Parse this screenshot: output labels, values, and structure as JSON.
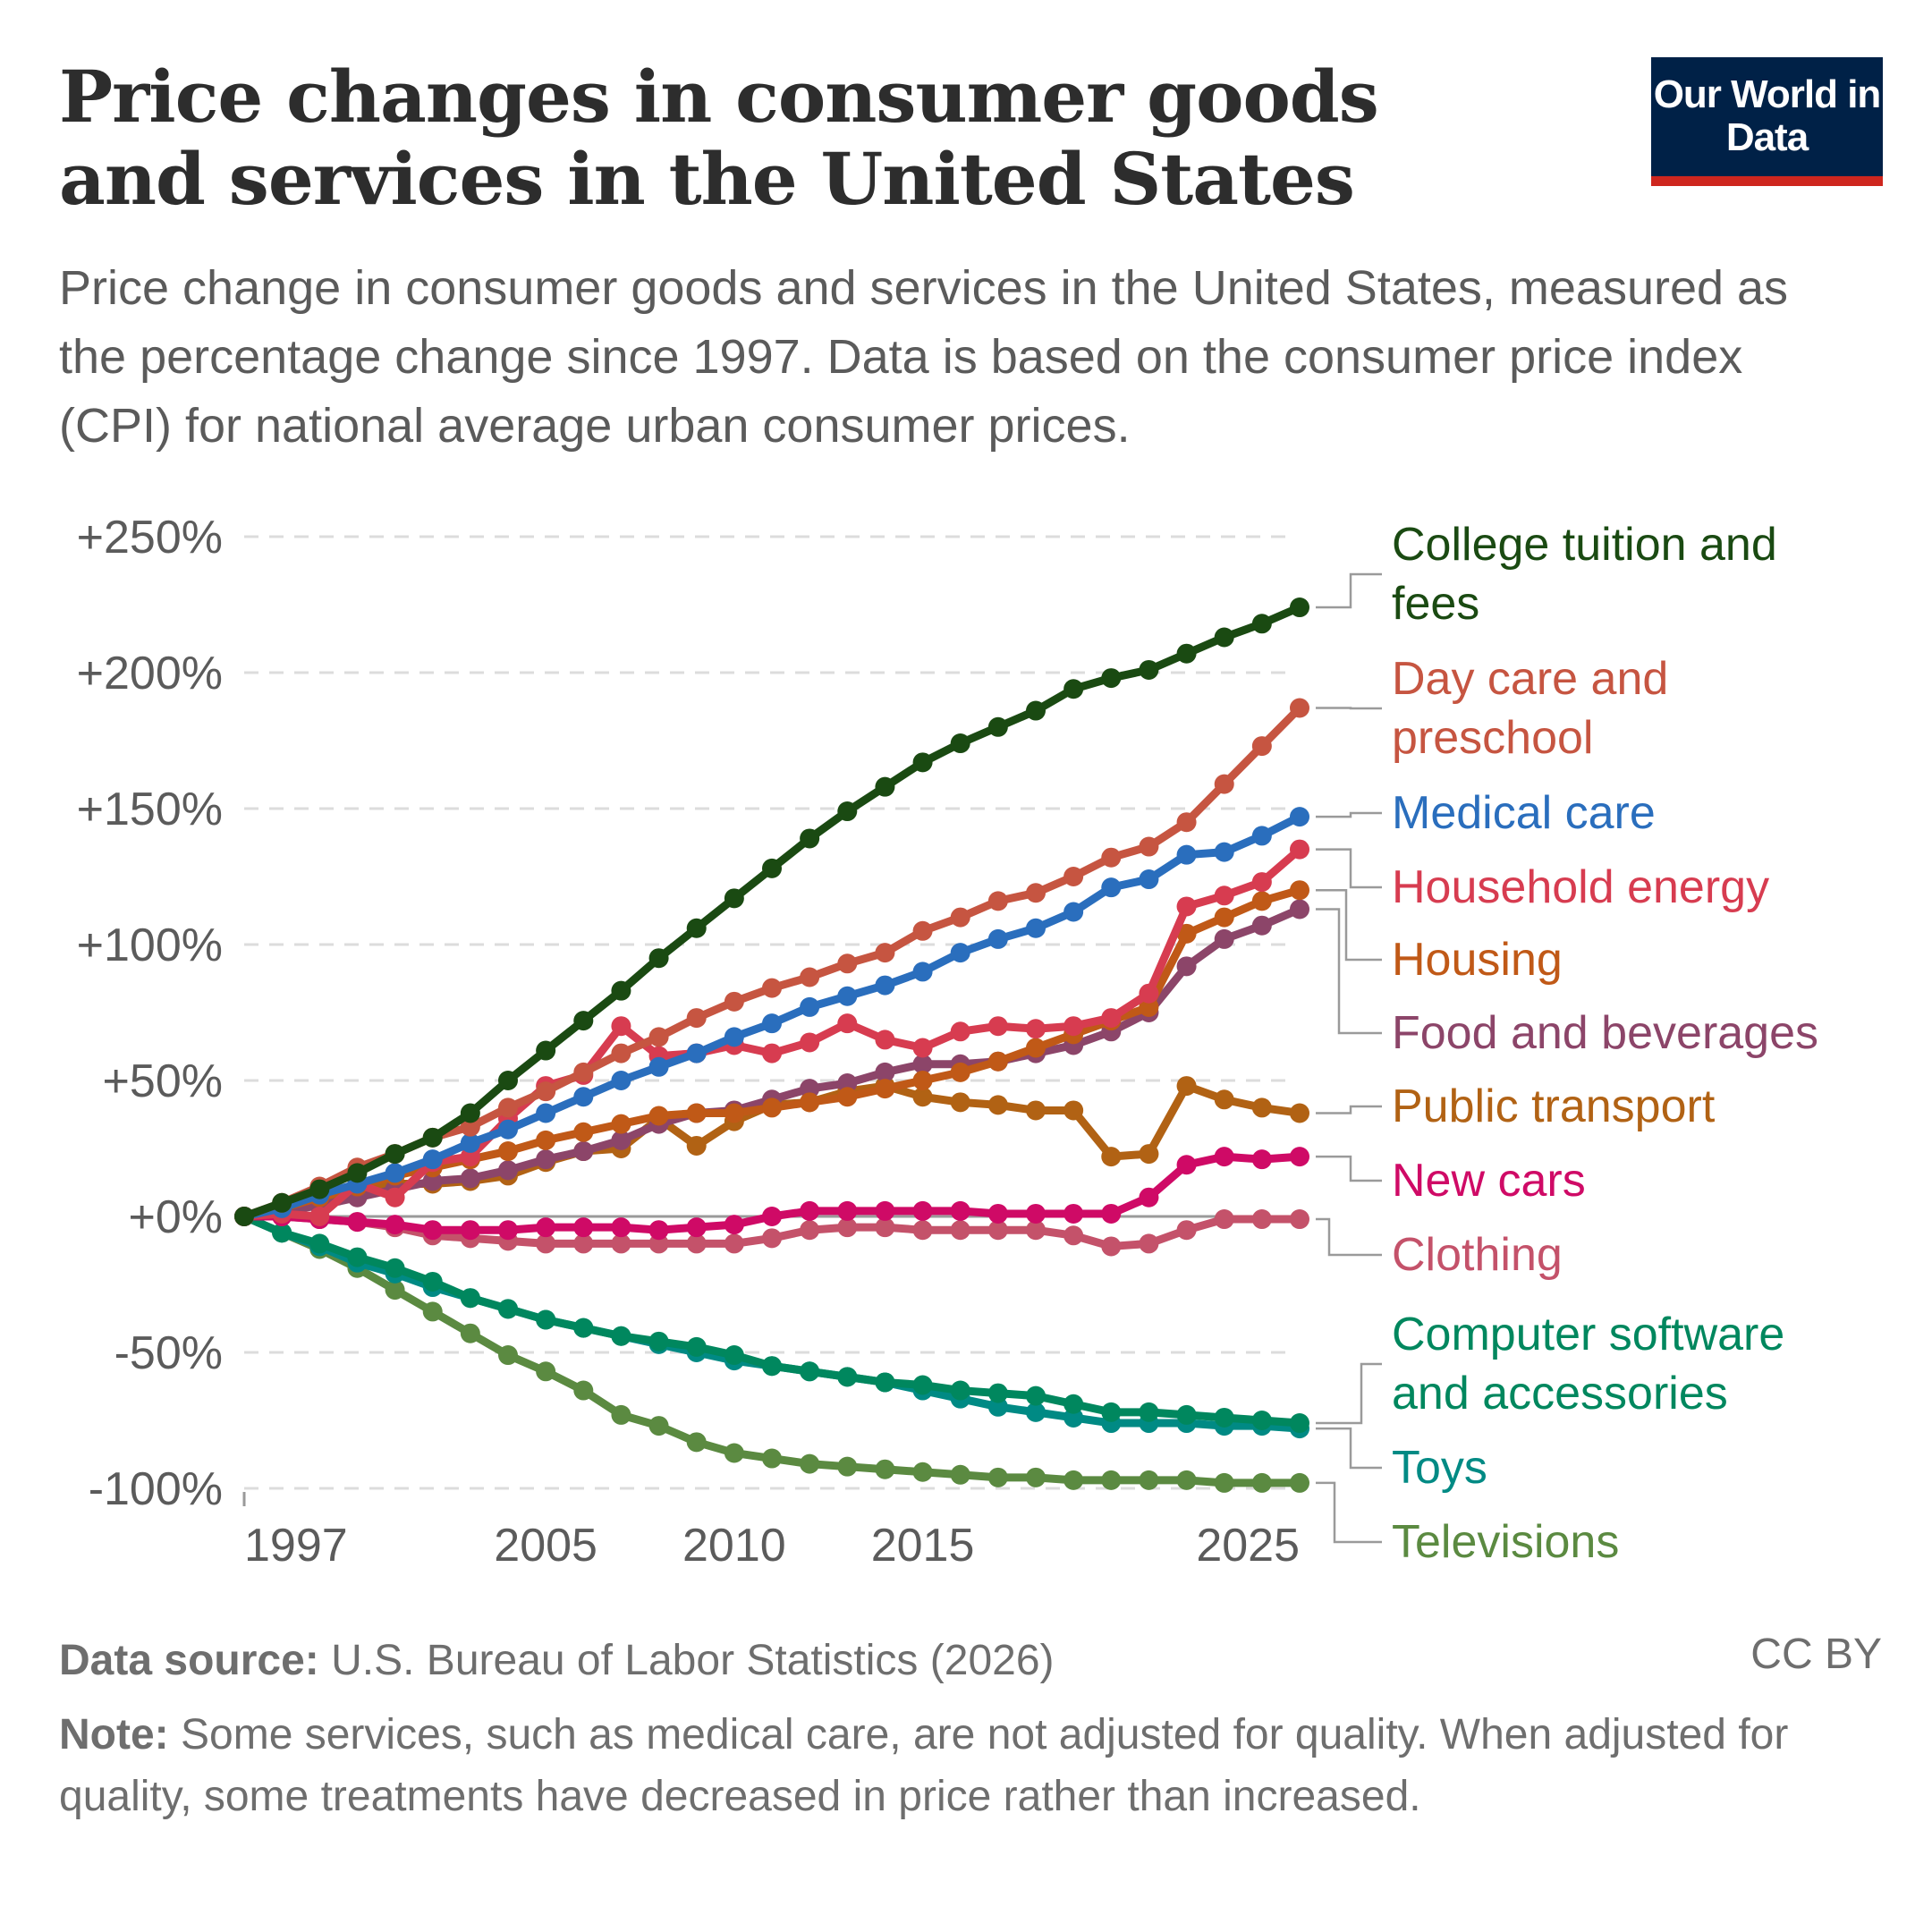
{
  "header": {
    "title": "Price changes in consumer goods and services in the United States",
    "subtitle": "Price change in consumer goods and services in the United States, measured as the percentage change since 1997. Data is based on the consumer price index (CPI) for national average urban consumer prices.",
    "logo_text": "Our World in Data"
  },
  "footer": {
    "source_label": "Data source:",
    "source_text": "U.S. Bureau of Labor Statistics (2026)",
    "license": "CC BY",
    "note_label": "Note:",
    "note_text": "Some services, such as medical care, are not adjusted for quality. When adjusted for quality, some treatments have decreased in price rather than increased."
  },
  "chart_data": {
    "type": "line",
    "title": "Price changes in consumer goods and services in the United States",
    "xlabel": "",
    "ylabel": "",
    "ylim": [
      -100,
      250
    ],
    "y_ticks": [
      "+250%",
      "+200%",
      "+150%",
      "+100%",
      "+50%",
      "+0%",
      "-50%",
      "-100%"
    ],
    "y_tick_values": [
      250,
      200,
      150,
      100,
      50,
      0,
      -50,
      -100
    ],
    "x_ticks": [
      1997,
      2005,
      2010,
      2015,
      2025
    ],
    "grid": true,
    "legend": "right (line-end labels)",
    "x": [
      1997,
      1998,
      1999,
      2000,
      2001,
      2002,
      2003,
      2004,
      2005,
      2006,
      2007,
      2008,
      2009,
      2010,
      2011,
      2012,
      2013,
      2014,
      2015,
      2016,
      2017,
      2018,
      2019,
      2020,
      2021,
      2022,
      2023,
      2024,
      2025
    ],
    "series": [
      {
        "name": "College tuition and fees",
        "color": "#1a4a12",
        "values": [
          0,
          5,
          10,
          16,
          23,
          29,
          38,
          50,
          61,
          72,
          83,
          95,
          106,
          117,
          128,
          139,
          149,
          158,
          167,
          174,
          180,
          186,
          194,
          198,
          201,
          207,
          213,
          218,
          224
        ]
      },
      {
        "name": "Day care and preschool",
        "color": "#c65541",
        "values": [
          0,
          5,
          11,
          18,
          23,
          29,
          33,
          40,
          46,
          53,
          60,
          66,
          73,
          79,
          84,
          88,
          93,
          97,
          105,
          110,
          116,
          119,
          125,
          132,
          136,
          145,
          159,
          173,
          187
        ]
      },
      {
        "name": "Medical care",
        "color": "#2a6ebd",
        "values": [
          0,
          3,
          8,
          12,
          16,
          21,
          27,
          32,
          38,
          44,
          50,
          55,
          60,
          66,
          71,
          77,
          81,
          85,
          90,
          97,
          102,
          106,
          112,
          121,
          124,
          133,
          134,
          140,
          147
        ]
      },
      {
        "name": "Household energy",
        "color": "#d73c50",
        "values": [
          0,
          1,
          0,
          12,
          7,
          20,
          22,
          36,
          48,
          52,
          70,
          59,
          60,
          63,
          60,
          64,
          71,
          65,
          62,
          68,
          70,
          69,
          70,
          73,
          82,
          114,
          118,
          123,
          135
        ]
      },
      {
        "name": "Housing",
        "color": "#c05917",
        "values": [
          0,
          3,
          7,
          11,
          15,
          18,
          21,
          24,
          28,
          31,
          34,
          37,
          38,
          38,
          40,
          42,
          44,
          47,
          50,
          53,
          57,
          62,
          67,
          72,
          77,
          104,
          110,
          116,
          120
        ]
      },
      {
        "name": "Food and beverages",
        "color": "#8c4569",
        "values": [
          0,
          2,
          4,
          7,
          10,
          13,
          14,
          17,
          21,
          24,
          28,
          34,
          38,
          39,
          43,
          47,
          49,
          53,
          56,
          56,
          57,
          60,
          63,
          68,
          75,
          92,
          102,
          107,
          113
        ]
      },
      {
        "name": "Public transport",
        "color": "#b16214",
        "values": [
          0,
          3,
          6,
          9,
          12,
          12,
          13,
          15,
          20,
          24,
          25,
          36,
          26,
          35,
          41,
          42,
          46,
          48,
          44,
          42,
          41,
          39,
          39,
          22,
          23,
          48,
          43,
          40,
          38
        ]
      },
      {
        "name": "New cars",
        "color": "#cf0a66",
        "values": [
          0,
          0,
          -1,
          -2,
          -3,
          -5,
          -5,
          -5,
          -4,
          -4,
          -4,
          -5,
          -4,
          -3,
          0,
          2,
          2,
          2,
          2,
          2,
          1,
          1,
          1,
          1,
          7,
          19,
          22,
          21,
          22
        ]
      },
      {
        "name": "Clothing",
        "color": "#c4526a",
        "values": [
          0,
          0,
          -1,
          -2,
          -4,
          -7,
          -8,
          -9,
          -10,
          -10,
          -10,
          -10,
          -10,
          -10,
          -8,
          -5,
          -4,
          -4,
          -5,
          -5,
          -5,
          -5,
          -7,
          -11,
          -10,
          -5,
          -1,
          -1,
          -1
        ]
      },
      {
        "name": "Computer software and accessories",
        "color": "#00875e",
        "values": [
          0,
          -6,
          -10,
          -15,
          -19,
          -24,
          -30,
          -34,
          -38,
          -41,
          -44,
          -46,
          -48,
          -51,
          -55,
          -57,
          -59,
          -61,
          -62,
          -64,
          -65,
          -66,
          -69,
          -72,
          -72,
          -73,
          -74,
          -75,
          -76
        ]
      },
      {
        "name": "Toys",
        "color": "#008a84",
        "values": [
          0,
          -6,
          -11,
          -17,
          -21,
          -26,
          -30,
          -34,
          -38,
          -41,
          -44,
          -47,
          -50,
          -53,
          -55,
          -57,
          -59,
          -61,
          -64,
          -67,
          -70,
          -72,
          -74,
          -76,
          -76,
          -76,
          -77,
          -77,
          -78
        ]
      },
      {
        "name": "Televisions",
        "color": "#5b8a41",
        "values": [
          0,
          -6,
          -12,
          -19,
          -27,
          -35,
          -43,
          -51,
          -57,
          -64,
          -73,
          -77,
          -83,
          -87,
          -89,
          -91,
          -92,
          -93,
          -94,
          -95,
          -96,
          -96,
          -97,
          -97,
          -97,
          -97,
          -98,
          -98,
          -98
        ]
      }
    ]
  }
}
